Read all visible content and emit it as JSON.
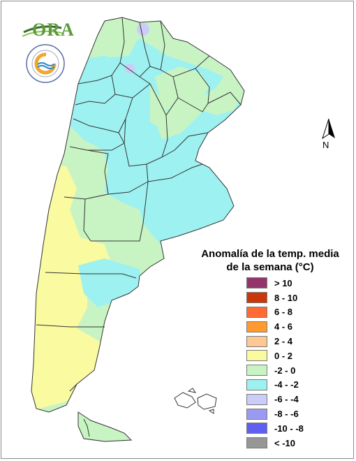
{
  "logo": {
    "text": "ORA"
  },
  "north_arrow": {
    "label": "N"
  },
  "legend": {
    "title_line1": "Anomalía de la temp. media",
    "title_line2": "de la semana (°C)",
    "items": [
      {
        "label": "> 10",
        "color": "#93356b"
      },
      {
        "label": "8 - 10",
        "color": "#c8380a"
      },
      {
        "label": "6 - 8",
        "color": "#ff6a35"
      },
      {
        "label": "4 - 6",
        "color": "#ff9a2f"
      },
      {
        "label": "2 - 4",
        "color": "#fdc893"
      },
      {
        "label": "0 - 2",
        "color": "#fafaa0"
      },
      {
        "label": "-2 - 0",
        "color": "#c8f4c4"
      },
      {
        "label": "-4 - -2",
        "color": "#9ef1f1"
      },
      {
        "label": "-6 - -4",
        "color": "#ccccf9"
      },
      {
        "label": "-8 - -6",
        "color": "#9a9af2"
      },
      {
        "label": "-10 - -8",
        "color": "#5f5ff2"
      },
      {
        "label": "< -10",
        "color": "#979797"
      }
    ]
  }
}
